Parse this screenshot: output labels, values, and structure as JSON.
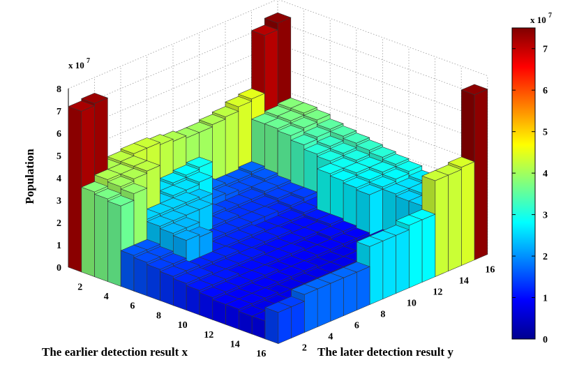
{
  "chart_data": {
    "type": "bar3d",
    "zlabel": "Population",
    "xlabel": "The earlier detection result x",
    "ylabel": "The later detection result y",
    "zlim": [
      0,
      8
    ],
    "z_ticks": [
      "0",
      "1",
      "2",
      "3",
      "4",
      "5",
      "6",
      "7",
      "8"
    ],
    "z_multiplier": "x 10",
    "z_exponent": "7",
    "x_ticks": [
      "2",
      "4",
      "6",
      "8",
      "10",
      "12",
      "14",
      "16"
    ],
    "y_ticks": [
      "2",
      "4",
      "6",
      "8",
      "10",
      "12",
      "14",
      "16"
    ],
    "grid": true,
    "colorbar": {
      "ticks": [
        "0",
        "1",
        "2",
        "3",
        "4",
        "5",
        "6",
        "7"
      ],
      "multiplier": "x 10",
      "exponent": "7",
      "range": [
        0,
        7.5
      ]
    },
    "x": [
      1,
      2,
      3,
      4,
      5,
      6,
      7,
      8,
      9,
      10,
      11,
      12,
      13,
      14,
      15,
      16
    ],
    "y": [
      1,
      2,
      3,
      4,
      5,
      6,
      7,
      8,
      9,
      10,
      11,
      12,
      13,
      14,
      15,
      16
    ],
    "z_note": "values in units of 10^7",
    "values": [
      [
        7.2,
        7.3,
        4.1,
        4.2,
        4.3,
        4.3,
        4.2,
        4.1,
        4.0,
        4.0,
        4.1,
        4.2,
        4.4,
        4.5,
        7.1,
        7.4
      ],
      [
        3.8,
        4.1,
        4.1,
        4.2,
        2.5,
        2.6,
        2.7,
        2.8,
        2.9,
        1.7,
        1.6,
        1.6,
        1.7,
        3.6,
        3.7,
        3.8
      ],
      [
        3.7,
        4.0,
        4.1,
        4.2,
        2.5,
        2.6,
        2.6,
        2.7,
        1.7,
        1.6,
        1.5,
        1.5,
        1.6,
        3.6,
        3.7,
        3.8
      ],
      [
        3.6,
        3.9,
        2.5,
        2.5,
        2.5,
        2.5,
        2.4,
        1.5,
        1.4,
        1.4,
        1.4,
        1.5,
        1.5,
        3.5,
        3.6,
        3.7
      ],
      [
        1.6,
        1.6,
        2.4,
        2.4,
        2.4,
        2.4,
        1.4,
        1.4,
        1.3,
        1.3,
        1.3,
        1.4,
        1.4,
        3.3,
        3.4,
        3.5
      ],
      [
        1.5,
        1.5,
        2.3,
        2.3,
        1.3,
        1.3,
        1.3,
        1.3,
        1.3,
        1.3,
        1.2,
        1.3,
        1.4,
        3.1,
        3.2,
        3.4
      ],
      [
        1.4,
        1.4,
        2.2,
        2.1,
        1.2,
        1.2,
        1.2,
        1.2,
        1.1,
        1.1,
        1.1,
        1.2,
        1.2,
        3.0,
        3.1,
        3.3
      ],
      [
        1.3,
        1.3,
        1.2,
        1.2,
        1.2,
        1.1,
        1.1,
        1.1,
        1.1,
        1.0,
        1.0,
        1.1,
        2.9,
        2.9,
        3.0,
        3.2
      ],
      [
        1.2,
        1.2,
        1.1,
        1.1,
        1.1,
        1.1,
        1.0,
        1.0,
        1.0,
        1.0,
        1.0,
        1.1,
        2.8,
        2.9,
        2.9,
        3.1
      ],
      [
        1.1,
        1.1,
        1.1,
        1.0,
        1.0,
        1.0,
        1.0,
        1.0,
        0.9,
        0.9,
        1.0,
        1.0,
        2.7,
        2.8,
        2.9,
        3.0
      ],
      [
        1.0,
        1.0,
        1.0,
        1.0,
        1.0,
        0.9,
        0.9,
        0.9,
        0.9,
        0.9,
        0.9,
        0.9,
        2.6,
        2.7,
        2.8,
        2.9
      ],
      [
        0.9,
        0.9,
        0.9,
        0.9,
        0.9,
        0.9,
        0.9,
        0.8,
        0.8,
        0.8,
        0.8,
        0.8,
        0.8,
        2.6,
        2.6,
        2.7
      ],
      [
        0.9,
        0.9,
        0.9,
        0.8,
        0.8,
        0.8,
        0.8,
        0.8,
        0.8,
        0.8,
        0.8,
        0.8,
        0.8,
        2.5,
        2.6,
        2.6
      ],
      [
        0.8,
        0.8,
        0.8,
        0.8,
        0.8,
        0.8,
        0.8,
        0.8,
        0.8,
        0.8,
        0.8,
        0.8,
        0.8,
        2.5,
        2.5,
        2.6
      ],
      [
        0.8,
        0.8,
        0.8,
        0.8,
        0.8,
        0.8,
        0.8,
        0.8,
        0.8,
        0.8,
        0.8,
        0.8,
        0.8,
        2.4,
        2.5,
        2.5
      ],
      [
        1.4,
        1.4,
        1.7,
        1.7,
        1.7,
        1.7,
        1.7,
        2.6,
        2.6,
        2.6,
        2.8,
        2.8,
        4.3,
        4.3,
        4.4,
        7.4
      ]
    ]
  }
}
